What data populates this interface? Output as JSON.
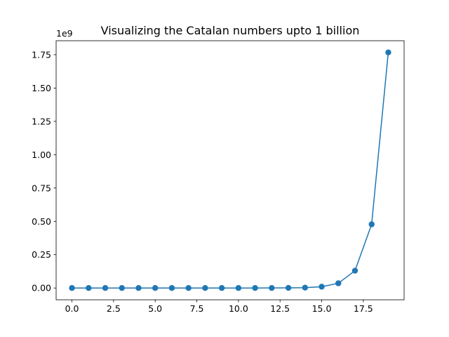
{
  "chart_data": {
    "type": "line",
    "title": "Visualizing the Catalan numbers upto 1 billion",
    "xlabel": "",
    "ylabel": "",
    "y_offset_label": "1e9",
    "y_scale": 1000000000,
    "xlim": [
      -0.95,
      19.95
    ],
    "ylim": [
      -88500000,
      1855000000
    ],
    "x_ticks": [
      0,
      2.5,
      5,
      7.5,
      10,
      12.5,
      15,
      17.5
    ],
    "x_tick_labels": [
      "0.0",
      "2.5",
      "5.0",
      "7.5",
      "10.0",
      "12.5",
      "15.0",
      "17.5"
    ],
    "y_ticks": [
      0,
      250000000,
      500000000,
      750000000,
      1000000000,
      1250000000,
      1500000000,
      1750000000
    ],
    "y_tick_labels": [
      "0.00",
      "0.25",
      "0.50",
      "0.75",
      "1.00",
      "1.25",
      "1.50",
      "1.75"
    ],
    "grid": false,
    "color": "#1f77b4",
    "marker": "circle",
    "series": [
      {
        "x": [
          0,
          1,
          2,
          3,
          4,
          5,
          6,
          7,
          8,
          9,
          10,
          11,
          12,
          13,
          14,
          15,
          16,
          17,
          18,
          19
        ],
        "values": [
          1,
          1,
          2,
          5,
          14,
          42,
          132,
          429,
          1430,
          4862,
          16796,
          58786,
          208012,
          742900,
          2674440,
          9694845,
          35357670,
          129644790,
          477638700,
          1767263190
        ]
      }
    ]
  }
}
